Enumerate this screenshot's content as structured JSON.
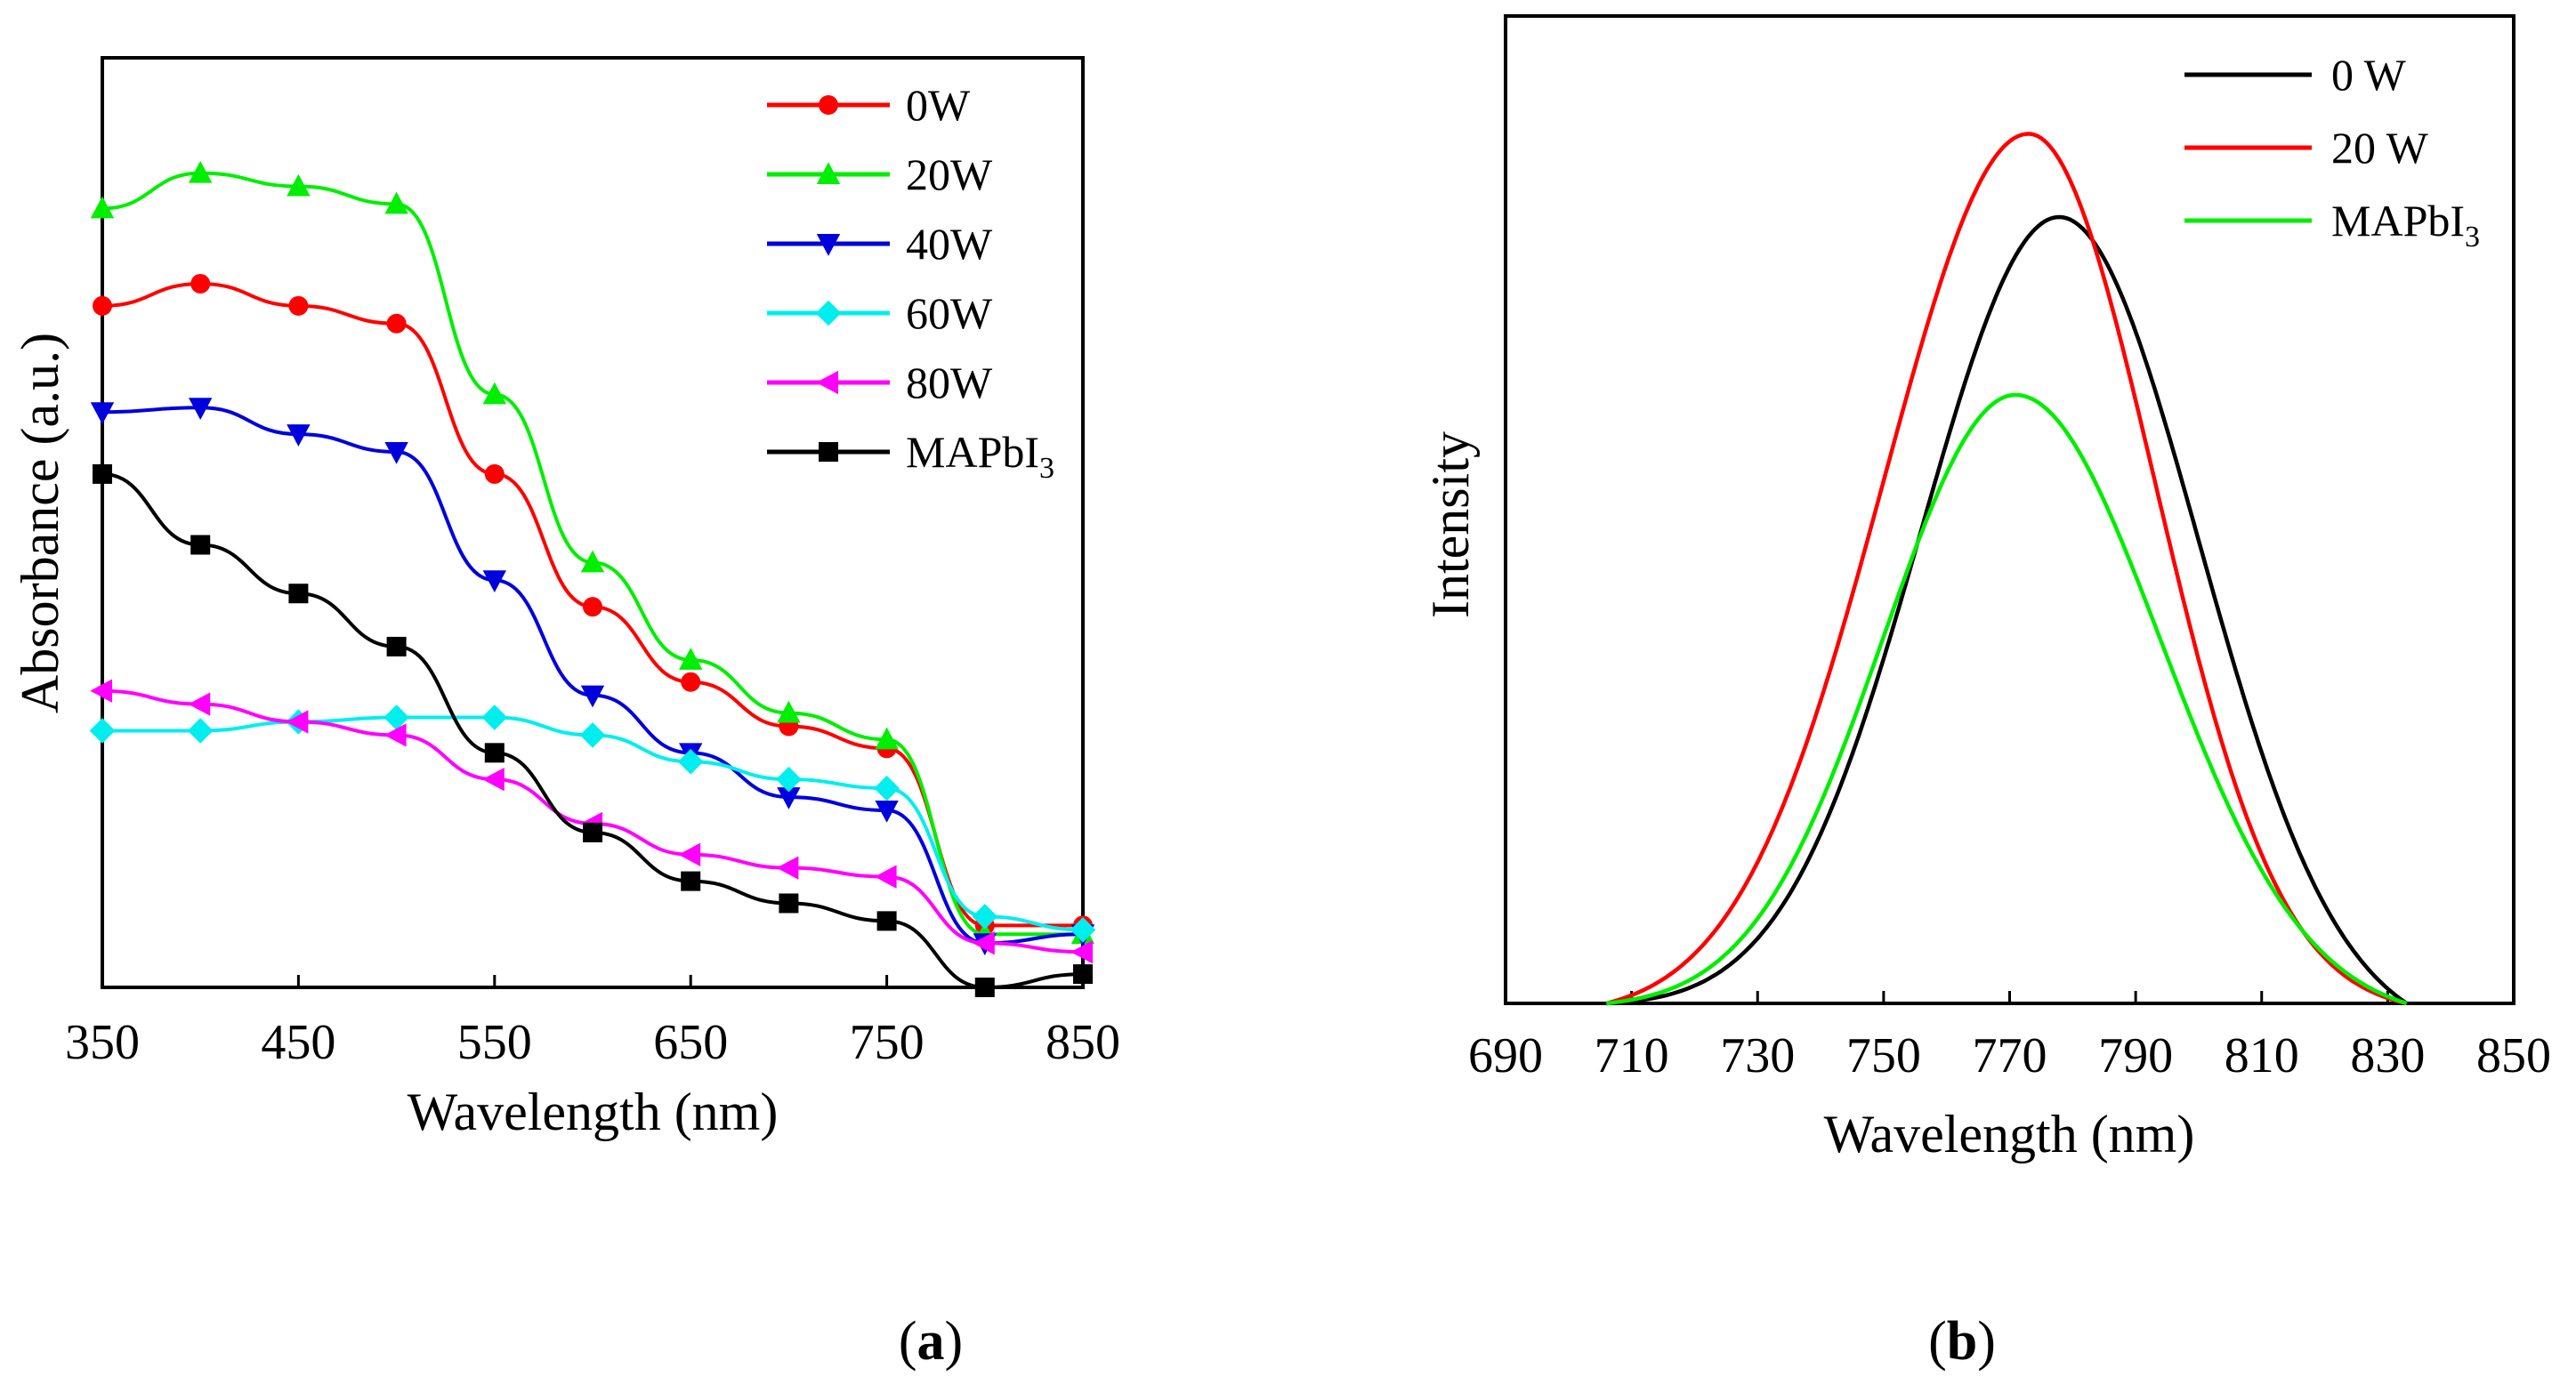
{
  "chart_data": [
    {
      "type": "line",
      "panel": "a",
      "caption_open": "(",
      "caption_letter": "a",
      "caption_close": ")",
      "xlabel": "Wavelength (nm)",
      "ylabel": "Absorbance (a.u.)",
      "xlim": [
        350,
        850
      ],
      "ylim": [
        0,
        1
      ],
      "xticks": [
        "350",
        "450",
        "550",
        "650",
        "750",
        "850"
      ],
      "legend_position": "top-right",
      "series": [
        {
          "name": "0W",
          "sub": "",
          "color": "#ff0000",
          "marker": "circle",
          "x": [
            350,
            400,
            450,
            500,
            550,
            600,
            650,
            700,
            750,
            800,
            850
          ],
          "y": [
            0.77,
            0.795,
            0.77,
            0.75,
            0.58,
            0.43,
            0.345,
            0.295,
            0.27,
            0.07,
            0.07
          ]
        },
        {
          "name": "20W",
          "sub": "",
          "color": "#00ee00",
          "marker": "triangle-up",
          "x": [
            350,
            400,
            450,
            500,
            550,
            600,
            650,
            700,
            750,
            800,
            850
          ],
          "y": [
            0.88,
            0.92,
            0.905,
            0.885,
            0.67,
            0.48,
            0.37,
            0.31,
            0.28,
            0.06,
            0.06
          ]
        },
        {
          "name": "40W",
          "sub": "",
          "color": "#0000dd",
          "marker": "triangle-down",
          "x": [
            350,
            400,
            450,
            500,
            550,
            600,
            650,
            700,
            750,
            800,
            850
          ],
          "y": [
            0.65,
            0.655,
            0.625,
            0.605,
            0.46,
            0.33,
            0.265,
            0.215,
            0.2,
            0.05,
            0.06
          ]
        },
        {
          "name": "60W",
          "sub": "",
          "color": "#00eeee",
          "marker": "diamond",
          "x": [
            350,
            400,
            450,
            500,
            550,
            600,
            650,
            700,
            750,
            800,
            850
          ],
          "y": [
            0.29,
            0.29,
            0.3,
            0.305,
            0.305,
            0.285,
            0.255,
            0.235,
            0.225,
            0.08,
            0.065
          ]
        },
        {
          "name": "80W",
          "sub": "",
          "color": "#ff00ff",
          "marker": "triangle-left",
          "x": [
            350,
            400,
            450,
            500,
            550,
            600,
            650,
            700,
            750,
            800,
            850
          ],
          "y": [
            0.335,
            0.32,
            0.3,
            0.285,
            0.235,
            0.185,
            0.15,
            0.135,
            0.125,
            0.05,
            0.04
          ]
        },
        {
          "name": "MAPbI",
          "sub": "3",
          "color": "#000000",
          "marker": "square",
          "x": [
            350,
            400,
            450,
            500,
            550,
            600,
            650,
            700,
            750,
            800,
            850
          ],
          "y": [
            0.58,
            0.5,
            0.445,
            0.385,
            0.265,
            0.175,
            0.12,
            0.095,
            0.075,
            0.0,
            0.015
          ]
        }
      ]
    },
    {
      "type": "line",
      "panel": "b",
      "caption_open": "(",
      "caption_letter": "b",
      "caption_close": ")",
      "xlabel": "Wavelength (nm)",
      "ylabel": "Intensity",
      "xlim": [
        690,
        850
      ],
      "ylim": [
        0,
        1
      ],
      "xticks": [
        "690",
        "710",
        "730",
        "750",
        "770",
        "790",
        "810",
        "830",
        "850"
      ],
      "legend_position": "top-right",
      "series": [
        {
          "name": "0 W",
          "sub": "",
          "color": "#000000",
          "peak": 778,
          "amp": 0.835,
          "sigma_left": 22,
          "sigma_right": 22
        },
        {
          "name": "20 W",
          "sub": "",
          "color": "#ff0000",
          "peak": 773,
          "amp": 0.91,
          "sigma_left": 23,
          "sigma_right": 20
        },
        {
          "name": "MAPbI",
          "sub": "3",
          "color": "#00ee00",
          "peak": 771,
          "amp": 0.64,
          "sigma_left": 21,
          "sigma_right": 23
        }
      ]
    }
  ]
}
